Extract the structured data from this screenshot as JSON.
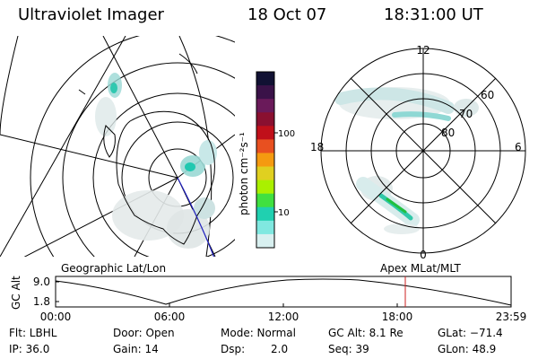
{
  "header": {
    "instrument": "Ultraviolet Imager",
    "date": "18 Oct 07",
    "time": "18:31:00 UT"
  },
  "colorbar": {
    "unit_label": "photon cm⁻²s⁻¹",
    "ticks": [
      "100",
      "10"
    ],
    "colors": [
      "#111133",
      "#3a1248",
      "#6a1a5a",
      "#8a1030",
      "#c0101a",
      "#e85020",
      "#f59a10",
      "#e0d020",
      "#aaf000",
      "#40e040",
      "#20d0b0",
      "#80e8e0",
      "#d8f0f0"
    ]
  },
  "map_left": {
    "label": "Geographic Lat/Lon"
  },
  "map_right": {
    "label": "Apex MLat/MLT",
    "mlt_labels": {
      "top": "12",
      "bottom": "0",
      "left": "18",
      "right": "6"
    },
    "mlat_labels": [
      "60",
      "70",
      "80"
    ]
  },
  "altitude_plot": {
    "y_title": "GC Alt",
    "y_ticks": [
      "9.0",
      "1.8"
    ],
    "x_ticks": [
      "00:00",
      "06:00",
      "12:00",
      "18:00",
      "23:59"
    ],
    "marker_color": "#cc2020"
  },
  "info": {
    "row1": {
      "flt": "Flt: LBHL",
      "door": "Door: Open",
      "mode": "Mode: Normal",
      "gcalt": "GC Alt: 8.1 Re",
      "glat": "GLat: −71.4"
    },
    "row2": {
      "ip": "IP: 36.0",
      "gain": "Gain: 14",
      "dsp_label": "Dsp:",
      "dsp_val": "2.0",
      "seq": "Seq: 39",
      "glon": "GLon:  48.9"
    }
  }
}
